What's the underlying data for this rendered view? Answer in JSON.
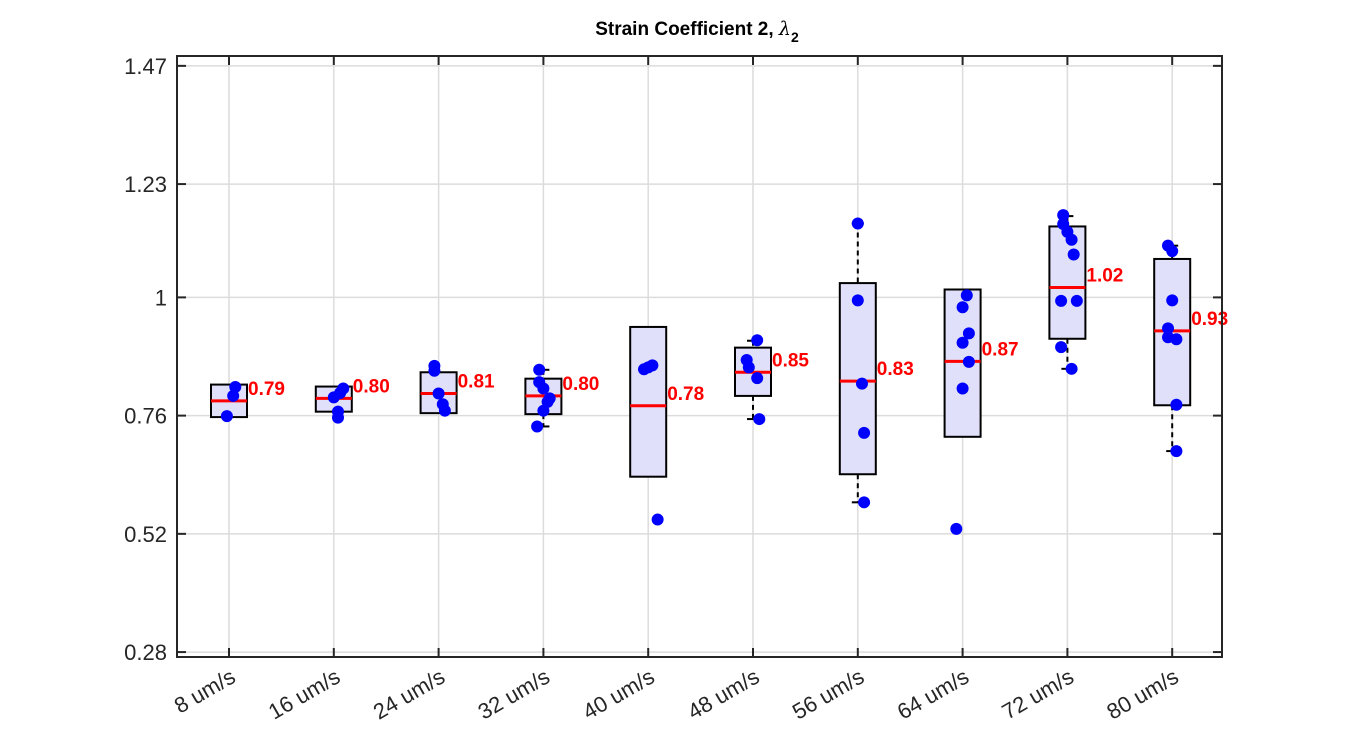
{
  "chart_data": {
    "type": "box",
    "title": "Strain Coefficient 2, ",
    "title_symbol": "λ",
    "title_subscript": "2",
    "xlabel": "",
    "ylabel": "",
    "ylim": [
      0.27,
      1.49
    ],
    "y_ticks": [
      0.28,
      0.52,
      0.76,
      1,
      1.23,
      1.47
    ],
    "y_tick_labels": [
      "0.28",
      "0.52",
      "0.76",
      "1",
      "1.23",
      "1.47"
    ],
    "grid": true,
    "categories": [
      "8 um/s",
      "16 um/s",
      "24 um/s",
      "32 um/s",
      "40 um/s",
      "48 um/s",
      "56 um/s",
      "64 um/s",
      "72 um/s",
      "80 um/s"
    ],
    "boxes": [
      {
        "q1": 0.757,
        "median": 0.79,
        "q3": 0.823,
        "whisker_low": 0.757,
        "whisker_high": 0.823,
        "median_label": "0.79",
        "points": [
          [
            -0.02,
            0.759
          ],
          [
            0.04,
            0.8
          ],
          [
            0.06,
            0.818
          ]
        ]
      },
      {
        "q1": 0.768,
        "median": 0.795,
        "q3": 0.819,
        "whisker_low": 0.768,
        "whisker_high": 0.819,
        "median_label": "0.80",
        "points": [
          [
            0.04,
            0.756
          ],
          [
            0.04,
            0.768
          ],
          [
            0.0,
            0.797
          ],
          [
            0.06,
            0.806
          ],
          [
            0.09,
            0.815
          ]
        ]
      },
      {
        "q1": 0.765,
        "median": 0.805,
        "q3": 0.848,
        "whisker_low": 0.765,
        "whisker_high": 0.848,
        "median_label": "0.81",
        "points": [
          [
            -0.04,
            0.861
          ],
          [
            -0.04,
            0.851
          ],
          [
            0.0,
            0.805
          ],
          [
            0.04,
            0.783
          ],
          [
            0.06,
            0.77
          ]
        ]
      },
      {
        "q1": 0.763,
        "median": 0.8,
        "q3": 0.835,
        "whisker_low": 0.738,
        "whisker_high": 0.853,
        "median_label": "0.80",
        "points": [
          [
            -0.06,
            0.738
          ],
          [
            0.0,
            0.77
          ],
          [
            0.04,
            0.788
          ],
          [
            0.0,
            0.815
          ],
          [
            -0.04,
            0.828
          ],
          [
            -0.04,
            0.853
          ],
          [
            0.06,
            0.795
          ]
        ]
      },
      {
        "q1": 0.636,
        "median": 0.78,
        "q3": 0.94,
        "whisker_low": 0.636,
        "whisker_high": 0.94,
        "median_label": "0.78",
        "points": [
          [
            -0.04,
            0.854
          ],
          [
            0.0,
            0.858
          ],
          [
            0.04,
            0.862
          ],
          [
            0.09,
            0.549
          ]
        ]
      },
      {
        "q1": 0.8,
        "median": 0.848,
        "q3": 0.898,
        "whisker_low": 0.753,
        "whisker_high": 0.912,
        "median_label": "0.85",
        "points": [
          [
            -0.06,
            0.873
          ],
          [
            -0.04,
            0.858
          ],
          [
            0.04,
            0.913
          ],
          [
            0.04,
            0.836
          ],
          [
            0.06,
            0.753
          ]
        ]
      },
      {
        "q1": 0.641,
        "median": 0.83,
        "q3": 1.029,
        "whisker_low": 0.584,
        "whisker_high": 1.15,
        "median_label": "0.83",
        "points": [
          [
            0.0,
            1.15
          ],
          [
            0.0,
            0.994
          ],
          [
            0.04,
            0.825
          ],
          [
            0.06,
            0.725
          ],
          [
            0.06,
            0.584
          ]
        ]
      },
      {
        "q1": 0.717,
        "median": 0.87,
        "q3": 1.016,
        "whisker_low": 0.717,
        "whisker_high": 1.016,
        "median_label": "0.87",
        "points": [
          [
            0.0,
            0.815
          ],
          [
            0.0,
            0.908
          ],
          [
            0.0,
            0.98
          ],
          [
            0.04,
            1.004
          ],
          [
            0.06,
            0.869
          ],
          [
            0.06,
            0.927
          ],
          [
            -0.06,
            0.53
          ]
        ]
      },
      {
        "q1": 0.916,
        "median": 1.02,
        "q3": 1.144,
        "whisker_low": 0.855,
        "whisker_high": 1.165,
        "median_label": "1.02",
        "points": [
          [
            -0.04,
            1.167
          ],
          [
            -0.04,
            1.149
          ],
          [
            0.0,
            1.133
          ],
          [
            0.04,
            1.117
          ],
          [
            0.06,
            1.087
          ],
          [
            -0.06,
            0.993
          ],
          [
            0.09,
            0.993
          ],
          [
            -0.06,
            0.899
          ],
          [
            0.04,
            0.855
          ]
        ]
      },
      {
        "q1": 0.781,
        "median": 0.932,
        "q3": 1.078,
        "whisker_low": 0.688,
        "whisker_high": 1.105,
        "median_label": "0.93",
        "points": [
          [
            -0.04,
            1.105
          ],
          [
            0.0,
            1.094
          ],
          [
            0.0,
            0.994
          ],
          [
            -0.04,
            0.937
          ],
          [
            -0.04,
            0.919
          ],
          [
            0.04,
            0.915
          ],
          [
            0.04,
            0.782
          ],
          [
            0.04,
            0.688
          ]
        ]
      }
    ],
    "colors": {
      "box_fill": "#e0e0fa",
      "box_edge": "#000000",
      "median": "#ff0000",
      "points": "#0000ff",
      "median_label": "#ff0000",
      "grid": "#dcdcdc",
      "axis": "#262626"
    }
  }
}
